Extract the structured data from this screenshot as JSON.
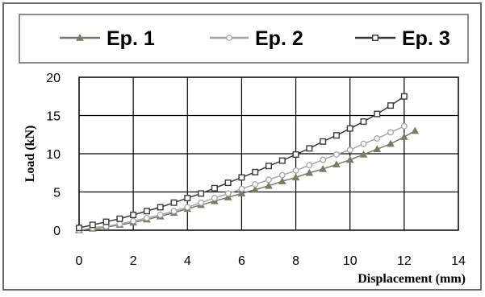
{
  "chart_data": {
    "type": "scatter",
    "title": "",
    "xlabel": "Displacement (mm)",
    "ylabel": "Load (kN)",
    "xlim": [
      0,
      14
    ],
    "ylim": [
      0,
      20
    ],
    "xticks": [
      0,
      2,
      4,
      6,
      8,
      10,
      12,
      14
    ],
    "yticks": [
      0,
      5,
      10,
      15,
      20
    ],
    "grid": true,
    "legend_position": "top",
    "series": [
      {
        "name": "Ep. 1",
        "marker": "triangle",
        "color": "#7a7a6a",
        "x": [
          0,
          0.5,
          1,
          1.5,
          2,
          2.5,
          3,
          3.5,
          4,
          4.5,
          5,
          5.5,
          6,
          6.5,
          7,
          7.5,
          8,
          8.5,
          9,
          9.5,
          10,
          10.5,
          11,
          11.5,
          12,
          12.4
        ],
        "y": [
          0,
          0.2,
          0.4,
          0.7,
          1.0,
          1.4,
          1.8,
          2.3,
          2.8,
          3.3,
          3.8,
          4.3,
          4.8,
          5.3,
          5.8,
          6.4,
          6.9,
          7.5,
          8.0,
          8.6,
          9.2,
          9.9,
          10.6,
          11.3,
          12.2,
          13.0
        ]
      },
      {
        "name": "Ep. 2",
        "marker": "circle",
        "color": "#a6a6a6",
        "x": [
          0,
          0.5,
          1,
          1.5,
          2,
          2.5,
          3,
          3.5,
          4,
          4.5,
          5,
          5.5,
          6,
          6.5,
          7,
          7.5,
          8,
          8.5,
          9,
          9.5,
          10,
          10.5,
          11,
          11.5,
          12
        ],
        "y": [
          0,
          0.3,
          0.5,
          0.8,
          1.2,
          1.6,
          2.0,
          2.5,
          3.0,
          3.6,
          4.2,
          4.8,
          5.4,
          6.0,
          6.6,
          7.2,
          7.8,
          8.5,
          9.2,
          9.9,
          10.5,
          11.3,
          12.0,
          12.8,
          13.6
        ]
      },
      {
        "name": "Ep. 3",
        "marker": "square",
        "color": "#3a3a3a",
        "x": [
          0,
          0.5,
          1,
          1.5,
          2,
          2.5,
          3,
          3.5,
          4,
          4.5,
          5,
          5.5,
          6,
          6.5,
          7,
          7.5,
          8,
          8.5,
          9,
          9.5,
          10,
          10.5,
          11,
          11.5,
          12
        ],
        "y": [
          0.3,
          0.7,
          1.1,
          1.5,
          2.0,
          2.5,
          3.0,
          3.6,
          4.2,
          4.8,
          5.5,
          6.2,
          6.9,
          7.6,
          8.4,
          9.1,
          9.9,
          10.7,
          11.6,
          12.4,
          13.3,
          14.2,
          15.2,
          16.3,
          17.5
        ]
      }
    ]
  }
}
